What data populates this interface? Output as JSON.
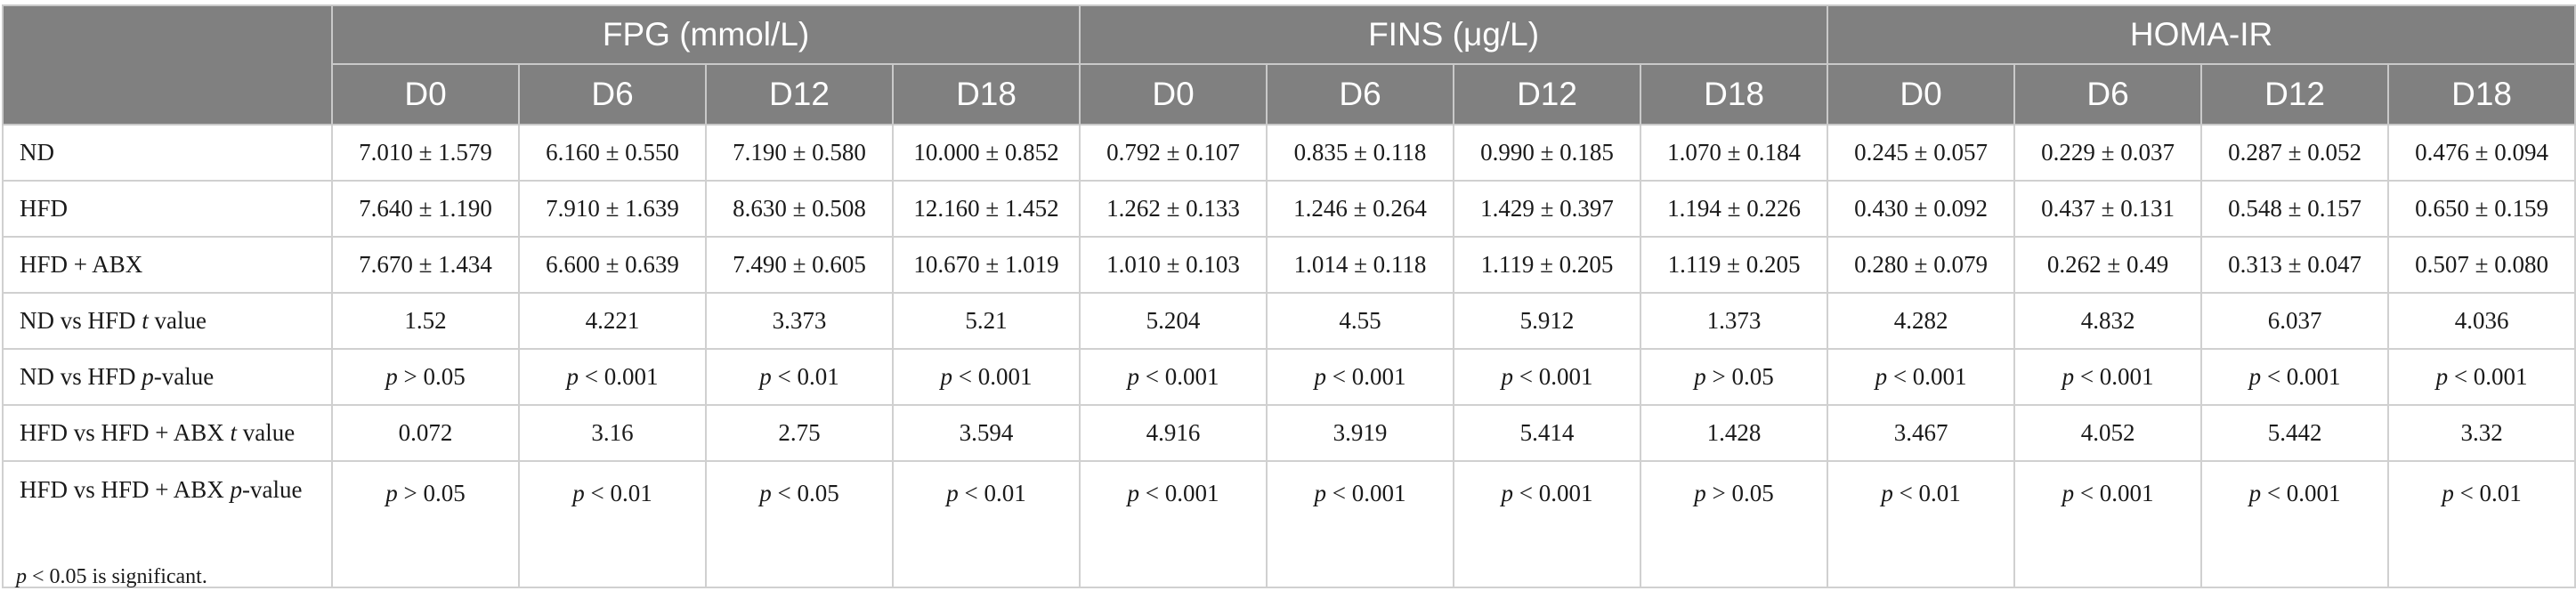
{
  "groups": [
    {
      "label": "FPG (mmol/L)"
    },
    {
      "label": "FINS (μg/L)"
    },
    {
      "label": "HOMA-IR"
    }
  ],
  "days": [
    "D0",
    "D6",
    "D12",
    "D18"
  ],
  "rows": [
    {
      "label": "ND",
      "values": [
        "7.010 ± 1.579",
        "6.160 ± 0.550",
        "7.190 ± 0.580",
        "10.000 ± 0.852",
        "0.792 ± 0.107",
        "0.835 ± 0.118",
        "0.990 ± 0.185",
        "1.070 ± 0.184",
        "0.245 ± 0.057",
        "0.229 ± 0.037",
        "0.287 ± 0.052",
        "0.476 ± 0.094"
      ]
    },
    {
      "label": "HFD",
      "values": [
        "7.640 ± 1.190",
        "7.910 ± 1.639",
        "8.630 ± 0.508",
        "12.160 ± 1.452",
        "1.262 ± 0.133",
        "1.246 ± 0.264",
        "1.429 ± 0.397",
        "1.194 ± 0.226",
        "0.430 ± 0.092",
        "0.437 ± 0.131",
        "0.548 ± 0.157",
        "0.650 ± 0.159"
      ]
    },
    {
      "label": "HFD + ABX",
      "values": [
        "7.670 ± 1.434",
        "6.600 ± 0.639",
        "7.490 ± 0.605",
        "10.670 ± 1.019",
        "1.010 ± 0.103",
        "1.014 ± 0.118",
        "1.119 ± 0.205",
        "1.119 ± 0.205",
        "0.280 ± 0.079",
        "0.262 ± 0.49",
        "0.313 ± 0.047",
        "0.507 ± 0.080"
      ]
    },
    {
      "label_pre": "ND vs HFD ",
      "label_ital": "t",
      "label_post": " value",
      "values": [
        "1.52",
        "4.221",
        "3.373",
        "5.21",
        "5.204",
        "4.55",
        "5.912",
        "1.373",
        "4.282",
        "4.832",
        "6.037",
        "4.036"
      ]
    },
    {
      "label_pre": "ND vs HFD ",
      "label_ital": "p",
      "label_post": "-value",
      "values": [
        {
          "p": "p",
          "rest": " > 0.05"
        },
        {
          "p": "p",
          "rest": " < 0.001"
        },
        {
          "p": "p",
          "rest": " < 0.01"
        },
        {
          "p": "p",
          "rest": " < 0.001"
        },
        {
          "p": "p",
          "rest": " < 0.001"
        },
        {
          "p": "p",
          "rest": " < 0.001"
        },
        {
          "p": "p",
          "rest": " < 0.001"
        },
        {
          "p": "p",
          "rest": " > 0.05"
        },
        {
          "p": "p",
          "rest": " < 0.001"
        },
        {
          "p": "p",
          "rest": " < 0.001"
        },
        {
          "p": "p",
          "rest": " < 0.001"
        },
        {
          "p": "p",
          "rest": " < 0.001"
        }
      ]
    },
    {
      "label_pre": "HFD vs HFD + ABX ",
      "label_ital": "t",
      "label_post": " value",
      "values": [
        "0.072",
        "3.16",
        "2.75",
        "3.594",
        "4.916",
        "3.919",
        "5.414",
        "1.428",
        "3.467",
        "4.052",
        "5.442",
        "3.32"
      ]
    },
    {
      "label_pre": "HFD vs HFD + ABX ",
      "label_ital": "p",
      "label_post": "-value",
      "values": [
        {
          "p": "p",
          "rest": " > 0.05"
        },
        {
          "p": "p",
          "rest": " < 0.01"
        },
        {
          "p": "p",
          "rest": " < 0.05"
        },
        {
          "p": "p",
          "rest": " < 0.01"
        },
        {
          "p": "p",
          "rest": " < 0.001"
        },
        {
          "p": "p",
          "rest": " < 0.001"
        },
        {
          "p": "p",
          "rest": " < 0.001"
        },
        {
          "p": "p",
          "rest": " > 0.05"
        },
        {
          "p": "p",
          "rest": " < 0.01"
        },
        {
          "p": "p",
          "rest": " < 0.001"
        },
        {
          "p": "p",
          "rest": " < 0.001"
        },
        {
          "p": "p",
          "rest": " < 0.01"
        }
      ]
    }
  ],
  "footnote": {
    "p": "p",
    "rest": " < 0.05 is significant."
  },
  "colors": {
    "header_bg": "#808080",
    "header_text": "#ffffff",
    "border": "#d0d0d0"
  }
}
